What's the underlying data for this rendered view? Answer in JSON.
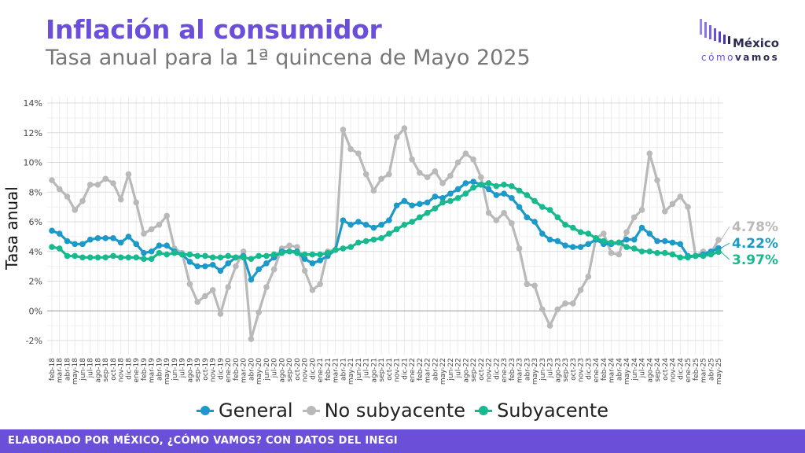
{
  "header": {
    "title": "Inflación al consumidor",
    "subtitle": "Tasa anual para la 1ª quincena de Mayo 2025"
  },
  "logo": {
    "top": "México",
    "bottom_pre": "cómo",
    "bottom_post": "vamos"
  },
  "footer": {
    "text": "ELABORADO POR MÉXICO, ¿CÓMO VAMOS? CON DATOS DEL INEGI"
  },
  "colors": {
    "accent": "#6b4fd8",
    "general": "#1b9ac9",
    "no_subyacente": "#b9b9b9",
    "subyacente": "#17b98e"
  },
  "chart_data": {
    "type": "line",
    "ylabel": "Tasa anual",
    "ylim": [
      -2,
      14
    ],
    "y_ticks": [
      "-2%",
      "0%",
      "2%",
      "4%",
      "6%",
      "8%",
      "10%",
      "12%",
      "14%"
    ],
    "categories": [
      "feb-18",
      "mar-18",
      "abr-18",
      "may-18",
      "jun-18",
      "jul-18",
      "ago-18",
      "sep-18",
      "oct-18",
      "nov-18",
      "dic-18",
      "ene-19",
      "feb-19",
      "mar-19",
      "abr-19",
      "may-19",
      "jun-19",
      "jul-19",
      "ago-19",
      "sep-19",
      "oct-19",
      "nov-19",
      "dic-19",
      "ene-20",
      "feb-20",
      "mar-20",
      "abr-20",
      "may-20",
      "jun-20",
      "jul-20",
      "ago-20",
      "sep-20",
      "oct-20",
      "nov-20",
      "dic-20",
      "ene-21",
      "feb-21",
      "mar-21",
      "abr-21",
      "may-21",
      "jun-21",
      "jul-21",
      "ago-21",
      "sep-21",
      "oct-21",
      "nov-21",
      "dic-21",
      "ene-22",
      "feb-22",
      "mar-22",
      "abr-22",
      "may-22",
      "jun-22",
      "jul-22",
      "ago-22",
      "sep-22",
      "oct-22",
      "nov-22",
      "dic-22",
      "ene-23",
      "feb-23",
      "mar-23",
      "abr-23",
      "may-23",
      "jun-23",
      "jul-23",
      "ago-23",
      "sep-23",
      "oct-23",
      "nov-23",
      "dic-23",
      "ene-24",
      "feb-24",
      "mar-24",
      "abr-24",
      "may-24",
      "jun-24",
      "jul-24",
      "ago-24",
      "sep-24",
      "oct-24",
      "nov-24",
      "dic-24",
      "ene-25",
      "feb-25",
      "mar-25",
      "abr-25",
      "may-25"
    ],
    "series": [
      {
        "name": "No subyacente",
        "key": "no_subyacente",
        "label": "4.78%",
        "values": [
          8.8,
          8.2,
          7.7,
          6.8,
          7.4,
          8.5,
          8.5,
          8.9,
          8.6,
          7.5,
          9.2,
          7.3,
          5.2,
          5.5,
          5.8,
          6.4,
          4.2,
          3.9,
          1.8,
          0.6,
          1.0,
          1.4,
          -0.2,
          1.6,
          3.0,
          4.0,
          -1.9,
          -0.1,
          1.6,
          2.8,
          4.2,
          4.4,
          4.3,
          2.7,
          1.4,
          1.8,
          4.0,
          4.1,
          12.2,
          10.9,
          10.6,
          9.2,
          8.1,
          8.9,
          9.2,
          11.7,
          12.3,
          10.2,
          9.3,
          9.0,
          9.4,
          8.6,
          9.1,
          10.0,
          10.6,
          10.2,
          9.0,
          6.6,
          6.1,
          6.6,
          5.9,
          4.2,
          1.8,
          1.7,
          0.1,
          -1.0,
          0.1,
          0.5,
          0.5,
          1.4,
          2.3,
          4.9,
          5.2,
          3.9,
          3.8,
          5.3,
          6.3,
          6.8,
          10.6,
          8.8,
          6.7,
          7.2,
          7.7,
          7.0,
          3.7,
          4.0,
          3.9,
          4.78
        ]
      },
      {
        "name": "General",
        "key": "general",
        "label": "4.22%",
        "values": [
          5.4,
          5.2,
          4.7,
          4.5,
          4.5,
          4.8,
          4.9,
          4.9,
          4.9,
          4.6,
          5.0,
          4.5,
          3.9,
          4.0,
          4.4,
          4.4,
          4.0,
          3.8,
          3.3,
          3.0,
          3.0,
          3.1,
          2.7,
          3.2,
          3.6,
          3.7,
          2.1,
          2.8,
          3.2,
          3.6,
          4.0,
          4.0,
          4.0,
          3.5,
          3.2,
          3.4,
          3.7,
          4.1,
          6.1,
          5.8,
          6.0,
          5.8,
          5.6,
          5.8,
          6.1,
          7.1,
          7.4,
          7.1,
          7.2,
          7.3,
          7.7,
          7.6,
          7.9,
          8.2,
          8.6,
          8.7,
          8.5,
          8.2,
          7.8,
          7.9,
          7.6,
          7.0,
          6.3,
          6.0,
          5.2,
          4.8,
          4.7,
          4.4,
          4.3,
          4.3,
          4.5,
          4.8,
          4.5,
          4.5,
          4.6,
          4.8,
          4.8,
          5.6,
          5.2,
          4.7,
          4.7,
          4.6,
          4.5,
          3.7,
          3.7,
          3.8,
          4.0,
          4.22
        ]
      },
      {
        "name": "Subyacente",
        "key": "subyacente",
        "label": "3.97%",
        "values": [
          4.3,
          4.2,
          3.7,
          3.7,
          3.6,
          3.6,
          3.6,
          3.6,
          3.7,
          3.6,
          3.6,
          3.6,
          3.5,
          3.5,
          3.9,
          3.8,
          3.9,
          3.8,
          3.8,
          3.7,
          3.7,
          3.6,
          3.6,
          3.7,
          3.6,
          3.6,
          3.5,
          3.7,
          3.7,
          3.8,
          3.9,
          4.0,
          3.9,
          3.8,
          3.8,
          3.8,
          3.9,
          4.1,
          4.2,
          4.3,
          4.6,
          4.7,
          4.8,
          4.9,
          5.2,
          5.5,
          5.8,
          6.0,
          6.3,
          6.6,
          6.9,
          7.3,
          7.4,
          7.6,
          7.9,
          8.3,
          8.5,
          8.6,
          8.4,
          8.5,
          8.4,
          8.1,
          7.8,
          7.4,
          7.0,
          6.8,
          6.3,
          5.8,
          5.6,
          5.3,
          5.2,
          4.9,
          4.7,
          4.6,
          4.6,
          4.3,
          4.2,
          4.0,
          4.0,
          3.9,
          3.9,
          3.8,
          3.6,
          3.6,
          3.7,
          3.7,
          3.8,
          3.97
        ]
      }
    ],
    "legend": [
      "General",
      "No subyacente",
      "Subyacente"
    ],
    "legend_position": "bottom",
    "grid": true
  }
}
